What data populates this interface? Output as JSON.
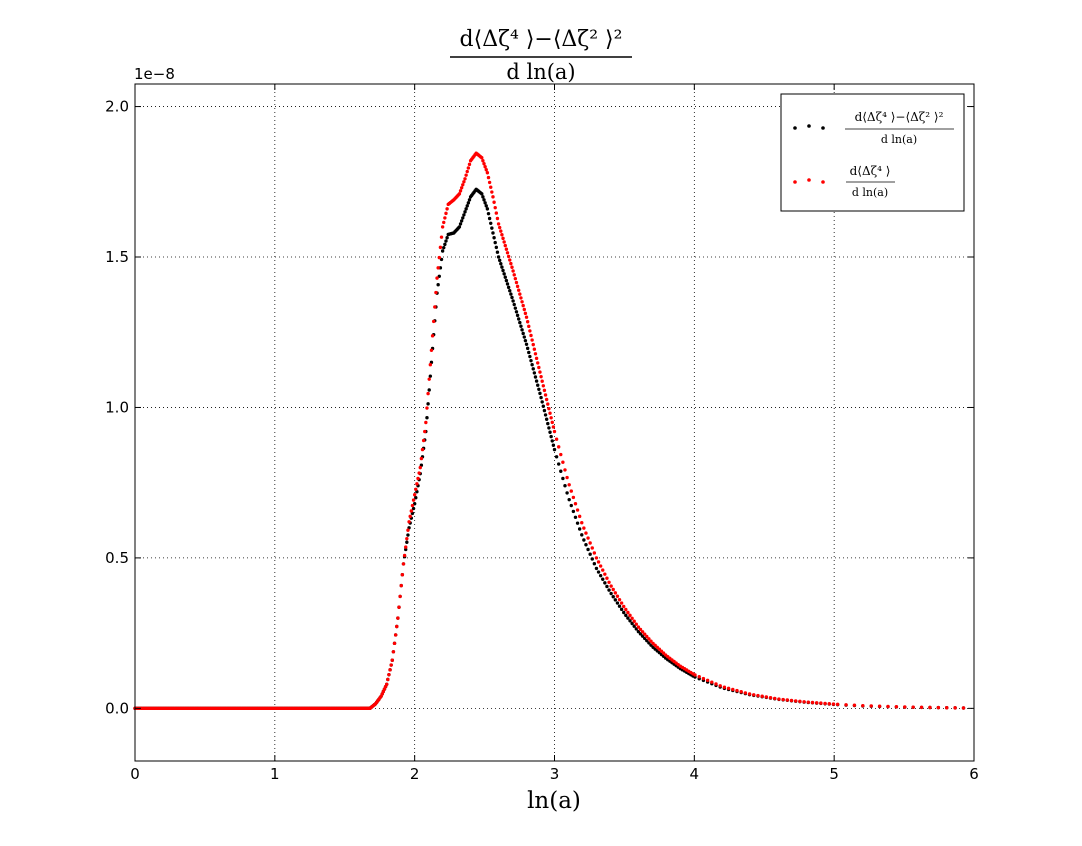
{
  "chart_data": {
    "type": "scatter",
    "title": {
      "numerator": "d⟨Δζ⁴ ⟩−⟨Δζ² ⟩²",
      "denominator": "d ln(a)"
    },
    "xlabel": "ln(a)",
    "ylabel": "",
    "xlim": [
      0,
      6
    ],
    "ylim": [
      -0.175,
      2.075
    ],
    "y_multiplier_text": "1e−8",
    "xticks": [
      "0",
      "1",
      "2",
      "3",
      "4",
      "5",
      "6"
    ],
    "yticks": [
      "0.0",
      "0.5",
      "1.0",
      "1.5",
      "2.0"
    ],
    "grid": true,
    "legend_position": "top-right",
    "series": [
      {
        "name": "d⟨Δζ⁴ ⟩−⟨Δζ² ⟩² / d ln(a)",
        "legend_numerator": "d⟨Δζ⁴ ⟩−⟨Δζ² ⟩²",
        "legend_denominator": "d ln(a)",
        "color": "#000000",
        "points": [
          [
            0,
            0
          ],
          [
            1.0,
            0
          ],
          [
            1.68,
            0
          ],
          [
            1.72,
            0.015
          ],
          [
            1.76,
            0.04
          ],
          [
            1.8,
            0.08
          ],
          [
            1.84,
            0.16
          ],
          [
            1.88,
            0.3
          ],
          [
            1.92,
            0.48
          ],
          [
            1.96,
            0.6
          ],
          [
            2.0,
            0.68
          ],
          [
            2.04,
            0.78
          ],
          [
            2.08,
            0.92
          ],
          [
            2.12,
            1.15
          ],
          [
            2.16,
            1.38
          ],
          [
            2.2,
            1.52
          ],
          [
            2.24,
            1.575
          ],
          [
            2.28,
            1.58
          ],
          [
            2.32,
            1.6
          ],
          [
            2.36,
            1.65
          ],
          [
            2.4,
            1.7
          ],
          [
            2.44,
            1.725
          ],
          [
            2.48,
            1.71
          ],
          [
            2.52,
            1.66
          ],
          [
            2.56,
            1.58
          ],
          [
            2.6,
            1.5
          ],
          [
            2.7,
            1.36
          ],
          [
            2.8,
            1.21
          ],
          [
            2.9,
            1.04
          ],
          [
            3.0,
            0.86
          ],
          [
            3.1,
            0.7
          ],
          [
            3.2,
            0.57
          ],
          [
            3.3,
            0.465
          ],
          [
            3.4,
            0.385
          ],
          [
            3.5,
            0.315
          ],
          [
            3.6,
            0.255
          ],
          [
            3.7,
            0.205
          ],
          [
            3.8,
            0.165
          ],
          [
            3.9,
            0.132
          ],
          [
            4.0,
            0.105
          ],
          [
            4.2,
            0.068
          ],
          [
            4.4,
            0.045
          ],
          [
            4.6,
            0.03
          ],
          [
            4.8,
            0.02
          ],
          [
            5.0,
            0.013
          ],
          [
            5.2,
            0.008
          ],
          [
            5.5,
            0.004
          ],
          [
            5.8,
            0.002
          ],
          [
            5.95,
            0.001
          ]
        ]
      },
      {
        "name": "d⟨Δζ⁴ ⟩ / d ln(a)",
        "legend_numerator": "d⟨Δζ⁴ ⟩",
        "legend_denominator": "d ln(a)",
        "color": "#ff0000",
        "points": [
          [
            0,
            0
          ],
          [
            1.0,
            0
          ],
          [
            1.68,
            0
          ],
          [
            1.72,
            0.015
          ],
          [
            1.76,
            0.04
          ],
          [
            1.8,
            0.08
          ],
          [
            1.84,
            0.16
          ],
          [
            1.88,
            0.3
          ],
          [
            1.92,
            0.48
          ],
          [
            1.96,
            0.62
          ],
          [
            2.0,
            0.71
          ],
          [
            2.04,
            0.8
          ],
          [
            2.08,
            0.95
          ],
          [
            2.12,
            1.19
          ],
          [
            2.16,
            1.43
          ],
          [
            2.2,
            1.6
          ],
          [
            2.24,
            1.675
          ],
          [
            2.28,
            1.69
          ],
          [
            2.32,
            1.71
          ],
          [
            2.36,
            1.76
          ],
          [
            2.4,
            1.82
          ],
          [
            2.44,
            1.845
          ],
          [
            2.48,
            1.83
          ],
          [
            2.52,
            1.78
          ],
          [
            2.56,
            1.7
          ],
          [
            2.6,
            1.61
          ],
          [
            2.7,
            1.46
          ],
          [
            2.8,
            1.3
          ],
          [
            2.9,
            1.11
          ],
          [
            3.0,
            0.92
          ],
          [
            3.1,
            0.75
          ],
          [
            3.2,
            0.61
          ],
          [
            3.3,
            0.5
          ],
          [
            3.4,
            0.41
          ],
          [
            3.5,
            0.335
          ],
          [
            3.6,
            0.27
          ],
          [
            3.7,
            0.218
          ],
          [
            3.8,
            0.175
          ],
          [
            3.9,
            0.14
          ],
          [
            4.0,
            0.112
          ],
          [
            4.2,
            0.072
          ],
          [
            4.4,
            0.047
          ],
          [
            4.6,
            0.031
          ],
          [
            4.8,
            0.021
          ],
          [
            5.0,
            0.014
          ],
          [
            5.2,
            0.009
          ],
          [
            5.5,
            0.0045
          ],
          [
            5.8,
            0.002
          ],
          [
            5.95,
            0.001
          ]
        ]
      }
    ]
  }
}
